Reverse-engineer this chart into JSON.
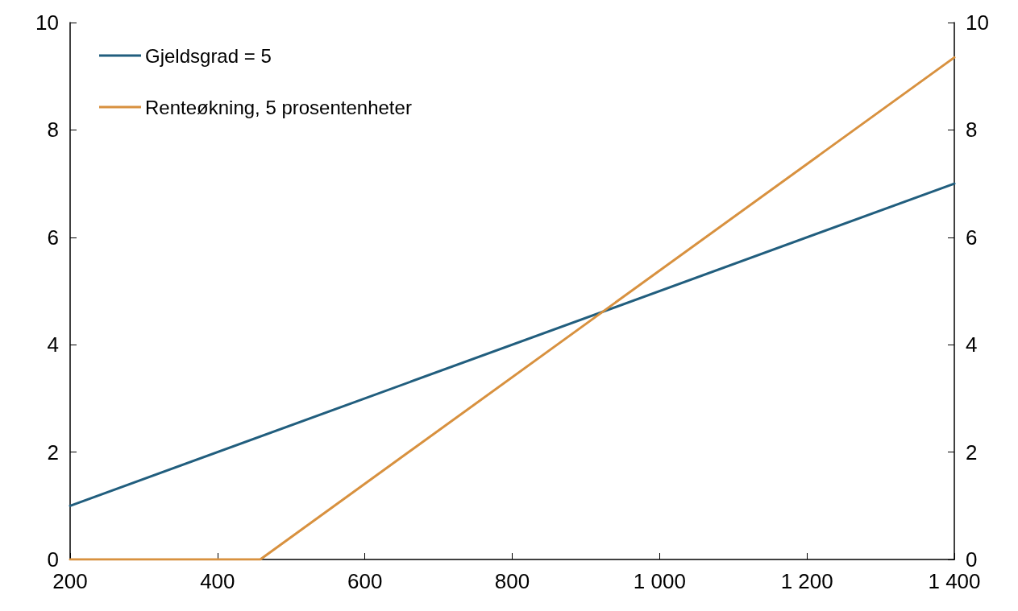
{
  "chart_data": {
    "type": "line",
    "series": [
      {
        "name": "Gjeldsgrad = 5",
        "color": "#215e7e",
        "x": [
          200,
          1400
        ],
        "values": [
          1.0,
          7.0
        ]
      },
      {
        "name": "Renteøkning, 5 prosentenheter",
        "color": "#d8913f",
        "x": [
          200,
          458,
          1400
        ],
        "values": [
          0,
          0,
          9.35
        ]
      }
    ],
    "xlim": [
      200,
      1400
    ],
    "xticks": [
      200,
      400,
      600,
      800,
      {
        "value": 1000,
        "label": "1 000"
      },
      {
        "value": 1200,
        "label": "1 200"
      },
      {
        "value": 1400,
        "label": "1 400"
      }
    ],
    "ylim": [
      0,
      10
    ],
    "yticks": [
      0,
      2,
      4,
      6,
      8,
      10
    ],
    "y2lim": [
      0,
      10
    ],
    "y2ticks": [
      0,
      2,
      4,
      6,
      8,
      10
    ],
    "grid": false,
    "legend": "top left",
    "marker": "none",
    "line_style": "solid"
  }
}
